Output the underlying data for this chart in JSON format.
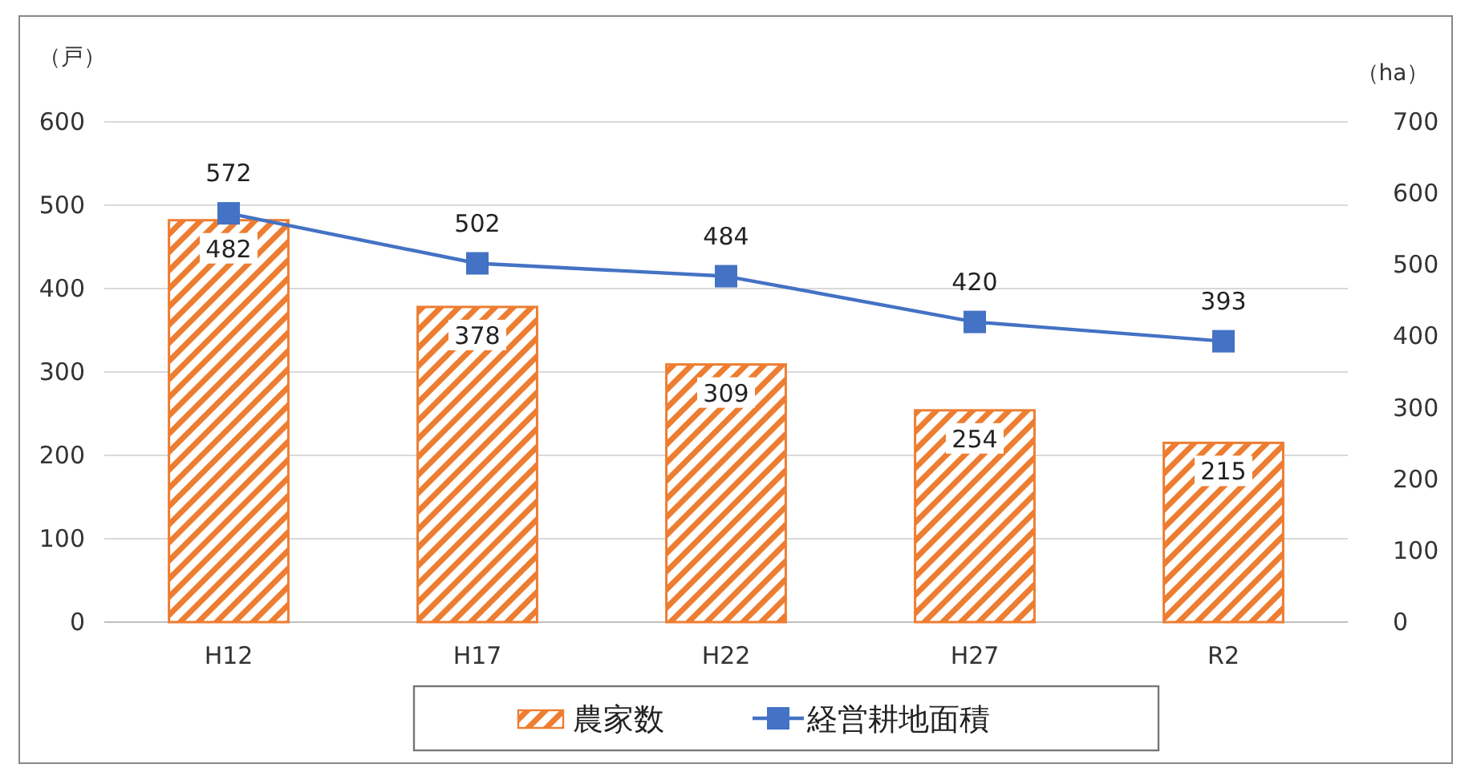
{
  "chart_data": {
    "type": "bar",
    "categories": [
      "H12",
      "H17",
      "H22",
      "H27",
      "R2"
    ],
    "ylabel": "（戸）",
    "y2label": "（ha）",
    "series": [
      {
        "name": "農家数",
        "color": "#ed7d31",
        "values": [
          482,
          378,
          309,
          254,
          215
        ]
      },
      {
        "name": "経営耕地面積",
        "type": "line",
        "axis": "y2",
        "color": "#4472c4",
        "marker": "square",
        "values": [
          572,
          502,
          484,
          420,
          393
        ]
      }
    ],
    "ylim": [
      0,
      600
    ],
    "yticks": [
      0,
      100,
      200,
      300,
      400,
      500,
      600
    ],
    "y2lim": [
      0,
      700
    ],
    "y2ticks": [
      0,
      100,
      200,
      300,
      400,
      500,
      600,
      700
    ],
    "grid": "y",
    "legend": "bottom",
    "data_labels": true
  }
}
